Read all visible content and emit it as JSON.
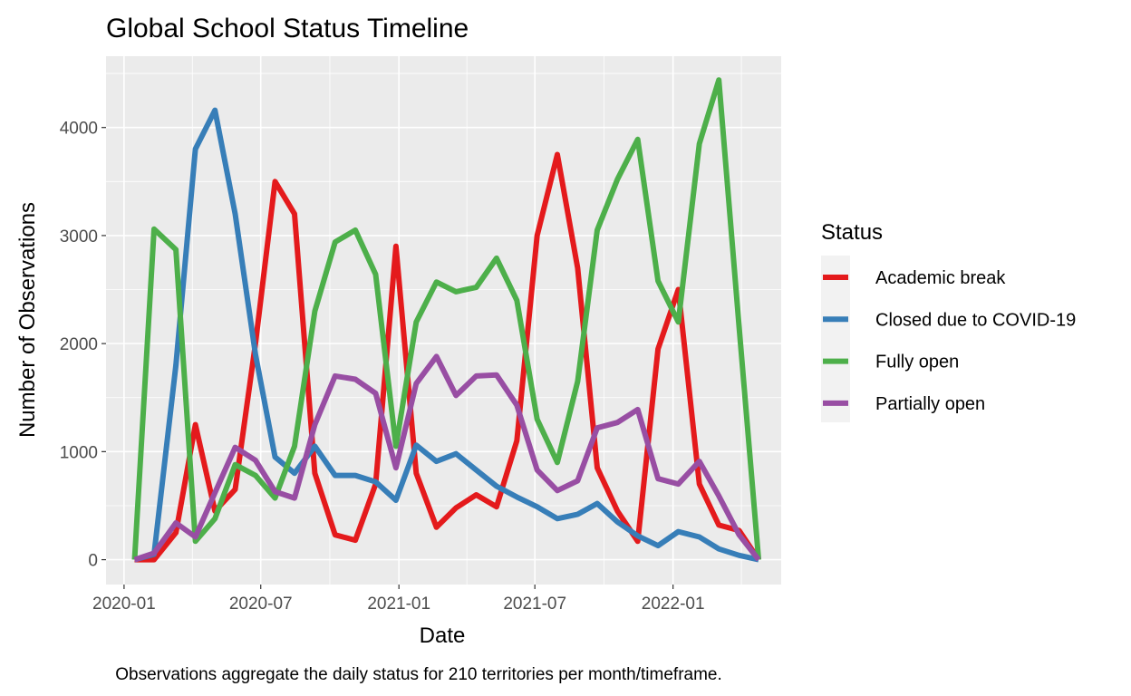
{
  "chart_data": {
    "type": "line",
    "title": "Global School Status Timeline",
    "xlabel": "Date",
    "ylabel": "Number of Observations",
    "caption": "Observations aggregate the daily status for 210 territories per month/timeframe.",
    "legend": {
      "title": "Status",
      "placement": "right"
    },
    "grid": true,
    "xlim": [
      "2019-12-08",
      "2022-05-25"
    ],
    "ylim": [
      -230,
      4660
    ],
    "x_ticks": [
      {
        "date": "2020-01-01",
        "label": "2020-01"
      },
      {
        "date": "2020-07-01",
        "label": "2020-07"
      },
      {
        "date": "2021-01-01",
        "label": "2021-01"
      },
      {
        "date": "2021-07-01",
        "label": "2021-07"
      },
      {
        "date": "2022-01-01",
        "label": "2022-01"
      }
    ],
    "y_ticks": [
      0,
      1000,
      2000,
      3000,
      4000
    ],
    "x": [
      "2020-01-15",
      "2020-02-10",
      "2020-03-10",
      "2020-04-05",
      "2020-05-01",
      "2020-05-28",
      "2020-06-24",
      "2020-07-20",
      "2020-08-15",
      "2020-09-11",
      "2020-10-08",
      "2020-11-04",
      "2020-12-01",
      "2020-12-28",
      "2021-01-24",
      "2021-02-20",
      "2021-03-18",
      "2021-04-14",
      "2021-05-11",
      "2021-06-07",
      "2021-07-04",
      "2021-07-31",
      "2021-08-27",
      "2021-09-22",
      "2021-10-19",
      "2021-11-15",
      "2021-12-12",
      "2022-01-08",
      "2022-02-05",
      "2022-03-03",
      "2022-03-30",
      "2022-04-25"
    ],
    "series": [
      {
        "name": "Academic break",
        "color": "#E41A1C",
        "values": [
          0,
          0,
          250,
          1250,
          450,
          650,
          2000,
          3500,
          3200,
          800,
          230,
          180,
          700,
          2900,
          800,
          300,
          480,
          600,
          490,
          1100,
          3000,
          3750,
          2700,
          850,
          450,
          170,
          1950,
          2500,
          700,
          320,
          270,
          0
        ]
      },
      {
        "name": "Closed due to COVID-19",
        "color": "#377EB8",
        "values": [
          0,
          50,
          1800,
          3800,
          4160,
          3200,
          1900,
          950,
          800,
          1050,
          780,
          780,
          720,
          550,
          1060,
          910,
          980,
          830,
          680,
          580,
          490,
          380,
          420,
          520,
          350,
          220,
          130,
          260,
          210,
          100,
          40,
          0
        ]
      },
      {
        "name": "Fully open",
        "color": "#4DAF4A",
        "values": [
          0,
          3060,
          2870,
          170,
          380,
          880,
          780,
          570,
          1050,
          2300,
          2940,
          3050,
          2640,
          1050,
          2200,
          2570,
          2480,
          2520,
          2790,
          2400,
          1300,
          900,
          1650,
          3050,
          3520,
          3890,
          2580,
          2200,
          3850,
          4440,
          2150,
          0
        ]
      },
      {
        "name": "Partially open",
        "color": "#984EA3",
        "values": [
          0,
          60,
          340,
          210,
          620,
          1040,
          920,
          630,
          570,
          1250,
          1700,
          1670,
          1540,
          850,
          1630,
          1880,
          1520,
          1700,
          1710,
          1430,
          830,
          640,
          730,
          1220,
          1270,
          1390,
          750,
          700,
          910,
          590,
          230,
          0
        ]
      }
    ]
  }
}
